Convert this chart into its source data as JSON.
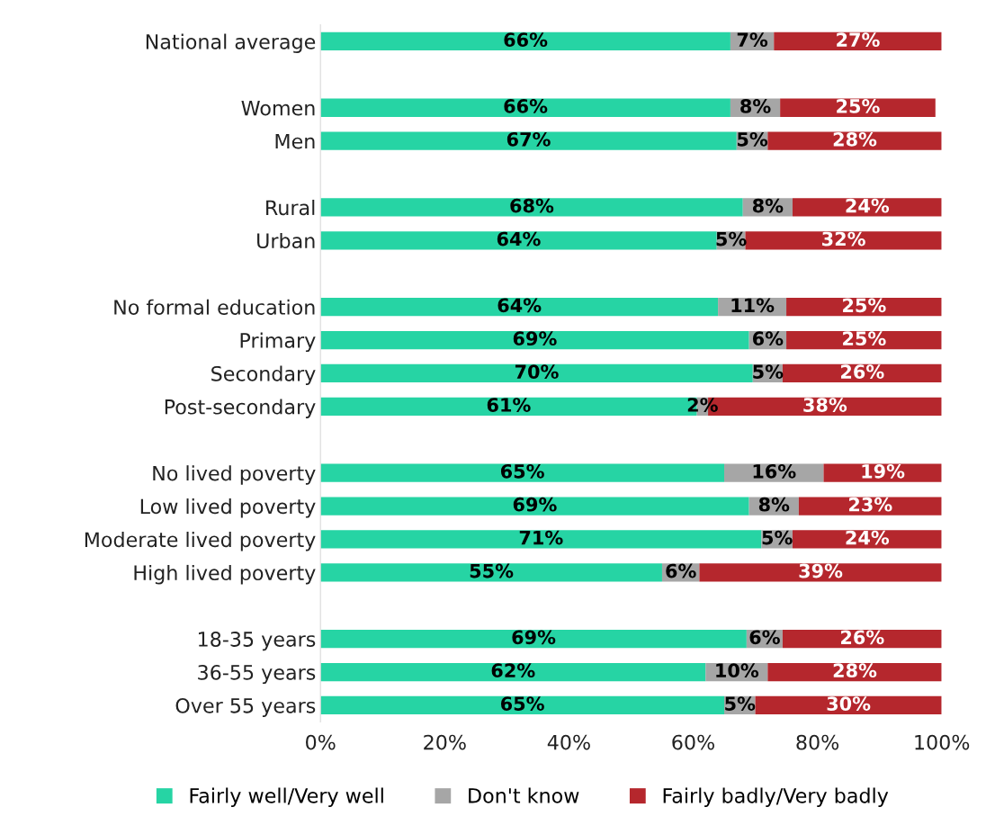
{
  "chart_data": {
    "type": "bar",
    "orientation": "horizontal",
    "stacked": true,
    "categories": [
      "National average",
      null,
      "Women",
      "Men",
      null,
      "Rural",
      "Urban",
      null,
      "No formal education",
      "Primary",
      "Secondary",
      "Post-secondary",
      null,
      "No lived poverty",
      "Low lived poverty",
      "Moderate lived poverty",
      "High lived poverty",
      null,
      "18-35 years",
      "36-55 years",
      "Over 55 years"
    ],
    "series": [
      {
        "name": "Fairly well/Very well",
        "color": "#26d4a4",
        "values": [
          66,
          null,
          66,
          67,
          null,
          68,
          63.8,
          null,
          64,
          69,
          69.6,
          60.6,
          null,
          65,
          69,
          71,
          55,
          null,
          68.6,
          62,
          65
        ],
        "value_labels": [
          "66%",
          null,
          "66%",
          "67%",
          null,
          "68%",
          "64%",
          null,
          "64%",
          "69%",
          "70%",
          "61%",
          null,
          "65%",
          "69%",
          "71%",
          "55%",
          null,
          "69%",
          "62%",
          "65%"
        ]
      },
      {
        "name": "Don't know",
        "color": "#a6a6a6",
        "values": [
          7,
          null,
          8,
          5,
          null,
          8,
          4.6,
          null,
          11,
          6,
          4.8,
          1.8,
          null,
          16,
          8,
          5,
          6,
          null,
          5.8,
          10,
          5
        ],
        "value_labels": [
          "7%",
          null,
          "8%",
          "5%",
          null,
          "8%",
          "5%",
          null,
          "11%",
          "6%",
          "5%",
          "2%",
          null,
          "16%",
          "8%",
          "5%",
          "6%",
          null,
          "6%",
          "10%",
          "5%"
        ]
      },
      {
        "name": "Fairly badly/Very badly",
        "color": "#b5272d",
        "values": [
          27,
          null,
          25,
          28,
          null,
          24,
          31.6,
          null,
          25,
          25,
          25.6,
          37.6,
          null,
          19,
          23,
          24,
          39,
          null,
          25.6,
          28,
          30
        ],
        "value_labels": [
          "27%",
          null,
          "25%",
          "28%",
          null,
          "24%",
          "32%",
          null,
          "25%",
          "25%",
          "26%",
          "38%",
          null,
          "19%",
          "23%",
          "24%",
          "39%",
          null,
          "26%",
          "28%",
          "30%"
        ]
      }
    ],
    "xlim": [
      0,
      100
    ],
    "xticks": [
      {
        "value": 0,
        "label": "0%"
      },
      {
        "value": 20,
        "label": "20%"
      },
      {
        "value": 40,
        "label": "40%"
      },
      {
        "value": 60,
        "label": "60%"
      },
      {
        "value": 80,
        "label": "80%"
      },
      {
        "value": 100,
        "label": "100%"
      }
    ],
    "grid": false,
    "legend": "bottom"
  }
}
